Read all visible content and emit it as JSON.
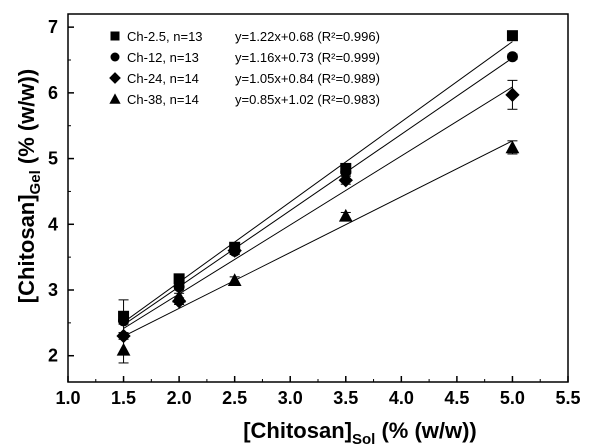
{
  "chart_data": {
    "type": "scatter",
    "xlabel": "[Chitosan]",
    "xlabel_sub": "Sol",
    "xlabel_tail": " (% (w/w))",
    "ylabel": "[Chitosan]",
    "ylabel_sub": "Gel",
    "ylabel_tail": " (% (w/w))",
    "xlim": [
      1.0,
      5.5
    ],
    "ylim": [
      1.6,
      7.2
    ],
    "xticks": [
      "1.0",
      "1.5",
      "2.0",
      "2.5",
      "3.0",
      "3.5",
      "4.0",
      "4.5",
      "5.0",
      "5.5"
    ],
    "yticks": [
      "2",
      "3",
      "4",
      "5",
      "6",
      "7"
    ],
    "grid": false,
    "legend_position": "top-left",
    "series": [
      {
        "name": "Ch-2.5, n=13",
        "equation": "y=1.22x+0.68 (R²=0.996)",
        "marker": "square",
        "x": [
          1.5,
          2.0,
          2.5,
          3.5,
          5.0
        ],
        "y": [
          2.6,
          3.17,
          3.65,
          4.85,
          6.87
        ],
        "slope": 1.22,
        "intercept": 0.68,
        "err": [
          0.25,
          0.05,
          0.05,
          0.06,
          0.04
        ]
      },
      {
        "name": "Ch-12, n=13",
        "equation": "y=1.16x+0.73 (R²=0.999)",
        "marker": "circle",
        "x": [
          1.5,
          2.0,
          2.5,
          3.5,
          5.0
        ],
        "y": [
          2.53,
          3.05,
          3.59,
          4.8,
          6.55
        ],
        "slope": 1.16,
        "intercept": 0.73,
        "err": [
          0.05,
          0.05,
          0.05,
          0.05,
          0.04
        ]
      },
      {
        "name": "Ch-24, n=14",
        "equation": "y=1.05x+0.84 (R²=0.989)",
        "marker": "diamond",
        "x": [
          1.5,
          2.0,
          2.5,
          3.5,
          5.0
        ],
        "y": [
          2.3,
          2.83,
          3.6,
          4.67,
          5.97
        ],
        "slope": 1.05,
        "intercept": 0.84,
        "err": [
          0.05,
          0.05,
          0.05,
          0.06,
          0.22
        ]
      },
      {
        "name": "Ch-38, n=14",
        "equation": "y=0.85x+1.02 (R²=0.983)",
        "marker": "triangle",
        "x": [
          1.5,
          2.0,
          2.5,
          3.5,
          5.0
        ],
        "y": [
          2.09,
          2.9,
          3.15,
          4.13,
          5.17
        ],
        "slope": 0.85,
        "intercept": 1.02,
        "err": [
          0.2,
          0.05,
          0.05,
          0.05,
          0.1
        ]
      }
    ],
    "colors": {
      "marker": "#000000",
      "line": "#000000",
      "background": "#ffffff"
    }
  }
}
